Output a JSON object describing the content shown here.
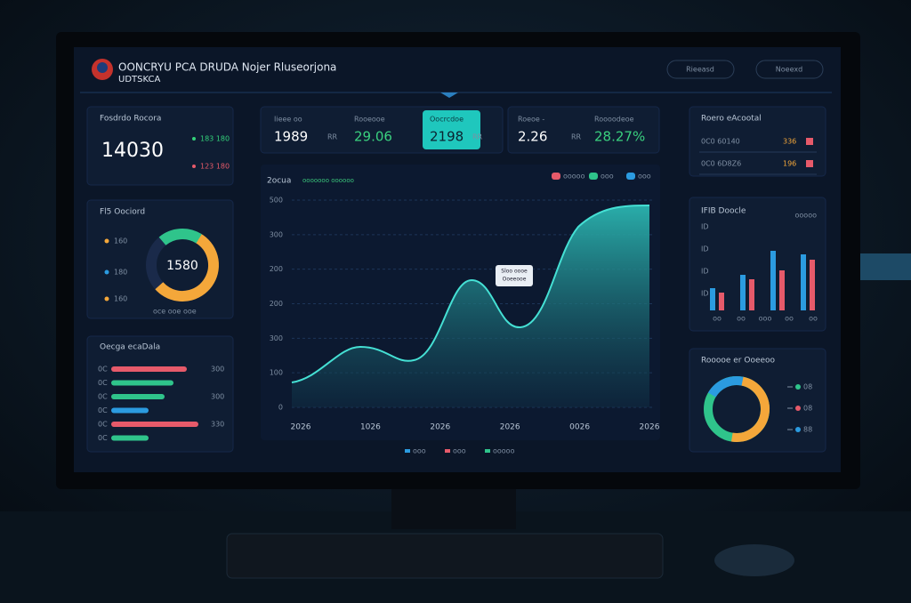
{
  "header": {
    "title": "OONCRYU PCA DRUDA Nojer Rluseorjona",
    "subtitle": "UDTSKCA",
    "buttons": [
      "Rieeasd",
      "Noeexd"
    ]
  },
  "left": {
    "summary": {
      "label": "Fosdrdo Rocora",
      "value": "14030",
      "items": [
        "183 180",
        "123 180"
      ]
    },
    "donut": {
      "label": "Fl5 Oociord",
      "center": "1580",
      "legend": [
        "160",
        "180",
        "160"
      ],
      "footer": "oce  ooe  ooe"
    },
    "bars": {
      "label": "Oecga ecaDala",
      "rows": [
        "0C",
        "0C",
        "0C",
        "0C",
        "0C",
        "0C"
      ],
      "values": [
        "300",
        "",
        "300",
        "",
        "330",
        ""
      ]
    }
  },
  "kpis": [
    {
      "label": "Iieee oo",
      "value": "1989",
      "unit": "RR"
    },
    {
      "label": "Rooeooe",
      "value": "29.06",
      "unit": ""
    },
    {
      "label": "Oocrcdoe",
      "value": "2198",
      "unit": "RR"
    },
    {
      "label": "Roeoe  -",
      "value": "2.26",
      "unit": "RR"
    },
    {
      "label": "Roooodeoe",
      "value": "28.27%",
      "unit": ""
    }
  ],
  "main": {
    "title": "2ocua",
    "tag": "ooooooo oooooo",
    "legend": [
      "ooooo",
      "ooo",
      "ooo"
    ],
    "y_labels": [
      "500",
      "300",
      "200",
      "200",
      "300",
      "100",
      "0"
    ],
    "x_labels": [
      "2026",
      "1026",
      "2026",
      "2026",
      "0026",
      "2026"
    ],
    "tooltip": [
      "Sloo oooe",
      "Ooeeooe"
    ],
    "footer": [
      "ooo",
      "ooo",
      "ooooo"
    ]
  },
  "right": {
    "list": {
      "label": "Roero eAcootal",
      "rows": [
        {
          "name": "0C0 60140",
          "value": "336"
        },
        {
          "name": "0C0 6D8Z6",
          "value": "196"
        }
      ]
    },
    "bars": {
      "label": "IFIB Doocle",
      "tag": "ooooo",
      "y_labels": [
        "ID",
        "ID",
        "ID",
        "ID"
      ],
      "x_labels": [
        "oo",
        "oo",
        "ooo",
        "oo",
        "oo"
      ]
    },
    "donut": {
      "label": "Rooooe er Ooeeoo",
      "legend": [
        "08",
        "08",
        "88"
      ]
    }
  }
}
